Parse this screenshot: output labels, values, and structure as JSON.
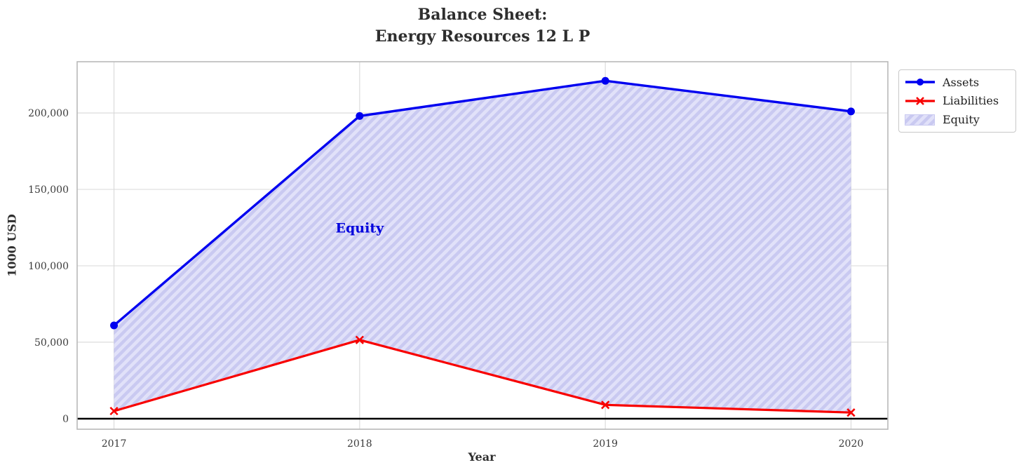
{
  "chart_data": {
    "type": "line",
    "title": "Balance Sheet:\nEnergy Resources 12 L P",
    "title_lines": [
      "Balance Sheet:",
      "Energy Resources 12 L P"
    ],
    "xlabel": "Year",
    "ylabel": "1000 USD",
    "x": [
      2017,
      2018,
      2019,
      2020
    ],
    "series": [
      {
        "name": "Assets",
        "values": [
          61000,
          198000,
          221000,
          201000
        ],
        "color": "#0000f0",
        "marker": "circle"
      },
      {
        "name": "Liabilities",
        "values": [
          5000,
          51500,
          9000,
          4000
        ],
        "color": "#f80000",
        "marker": "x"
      }
    ],
    "fill_between": {
      "name": "Equity",
      "upper": "Assets",
      "lower": "Liabilities",
      "values": [
        56000,
        146500,
        212000,
        197000
      ],
      "fill_color": "#e1e1f9",
      "hatch_color": "#c9c9f1",
      "hatch_style": "diagonal"
    },
    "annotation": {
      "text": "Equity",
      "x": 2018,
      "y": 125000,
      "color": "#0000dd"
    },
    "xlim": [
      2016.85,
      2020.15
    ],
    "ylim": [
      -6900,
      233500
    ],
    "xticks": [
      2017,
      2018,
      2019,
      2020
    ],
    "xtick_labels": [
      "2017",
      "2018",
      "2019",
      "2020"
    ],
    "yticks": [
      0,
      50000,
      100000,
      150000,
      200000
    ],
    "ytick_labels": [
      "0",
      "50,000",
      "100,000",
      "150,000",
      "200,000"
    ],
    "grid": true,
    "zero_line": true,
    "grid_color": "#d8d8d8",
    "border_color": "#b9b9b9",
    "tick_label_color": "#3a3a3a",
    "legend_position": "upper-right-outside"
  },
  "legend": {
    "items": [
      {
        "label": "Assets",
        "swatch": "blue-line-circle-marker"
      },
      {
        "label": "Liabilities",
        "swatch": "red-line-x-marker"
      },
      {
        "label": "Equity",
        "swatch": "hatched-patch"
      }
    ]
  }
}
